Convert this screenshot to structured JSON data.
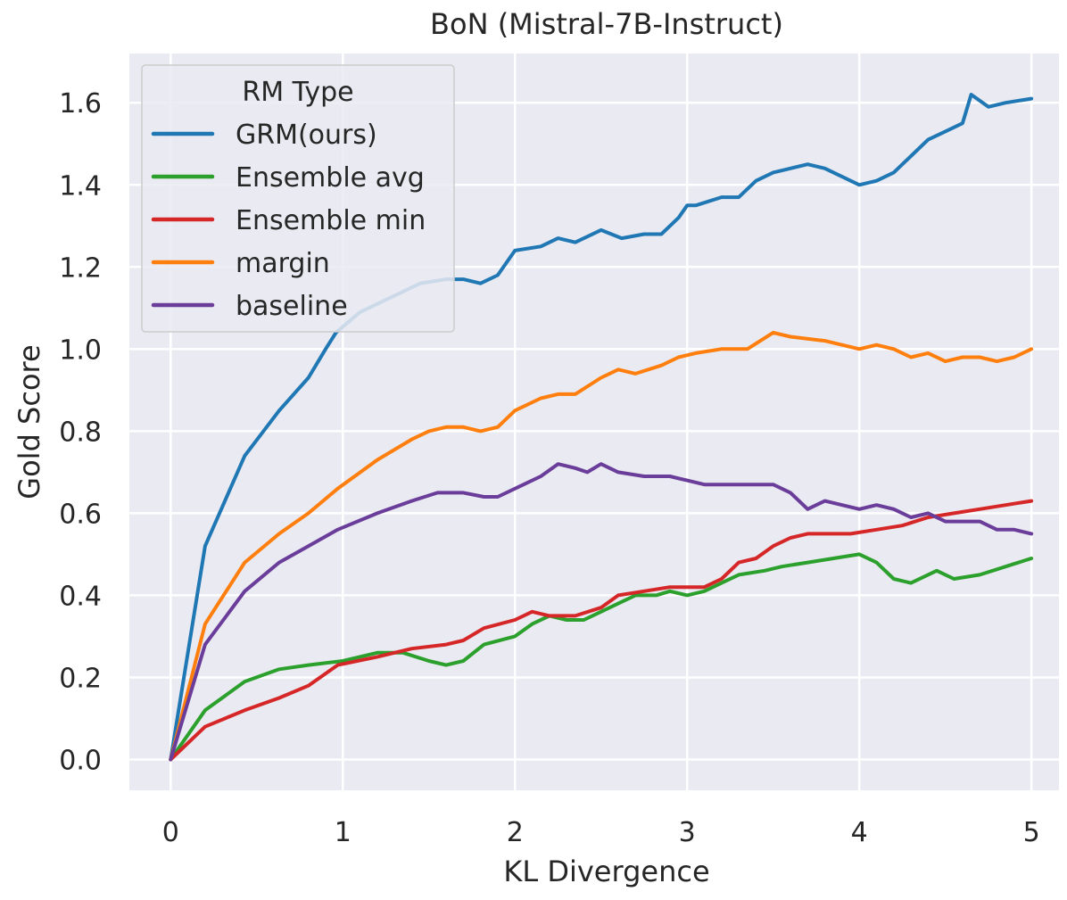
{
  "chart_data": {
    "type": "line",
    "title": "BoN (Mistral-7B-Instruct)",
    "xlabel": "KL Divergence",
    "ylabel": "Gold Score",
    "xlim": [
      -0.24,
      5.16
    ],
    "ylim": [
      -0.075,
      1.72
    ],
    "x_ticks": [
      0,
      1,
      2,
      3,
      4,
      5
    ],
    "x_tick_labels": [
      "0",
      "1",
      "2",
      "3",
      "4",
      "5"
    ],
    "y_ticks": [
      0.0,
      0.2,
      0.4,
      0.6,
      0.8,
      1.0,
      1.2,
      1.4,
      1.6
    ],
    "y_tick_labels": [
      "0.0",
      "0.2",
      "0.4",
      "0.6",
      "0.8",
      "1.0",
      "1.2",
      "1.4",
      "1.6"
    ],
    "grid": true,
    "legend_title": "RM Type",
    "legend_position": "top-left",
    "series": [
      {
        "name": "GRM(ours)",
        "color": "#1f77b4",
        "points": [
          [
            0,
            0
          ],
          [
            0.2,
            0.52
          ],
          [
            0.43,
            0.74
          ],
          [
            0.63,
            0.85
          ],
          [
            0.8,
            0.93
          ],
          [
            0.9,
            1.0
          ],
          [
            0.96,
            1.04
          ],
          [
            1.1,
            1.09
          ],
          [
            1.3,
            1.13
          ],
          [
            1.45,
            1.16
          ],
          [
            1.6,
            1.17
          ],
          [
            1.7,
            1.17
          ],
          [
            1.8,
            1.16
          ],
          [
            1.9,
            1.18
          ],
          [
            2.0,
            1.24
          ],
          [
            2.15,
            1.25
          ],
          [
            2.25,
            1.27
          ],
          [
            2.35,
            1.26
          ],
          [
            2.5,
            1.29
          ],
          [
            2.62,
            1.27
          ],
          [
            2.75,
            1.28
          ],
          [
            2.85,
            1.28
          ],
          [
            2.95,
            1.32
          ],
          [
            3.0,
            1.35
          ],
          [
            3.05,
            1.35
          ],
          [
            3.2,
            1.37
          ],
          [
            3.3,
            1.37
          ],
          [
            3.4,
            1.41
          ],
          [
            3.5,
            1.43
          ],
          [
            3.6,
            1.44
          ],
          [
            3.7,
            1.45
          ],
          [
            3.8,
            1.44
          ],
          [
            3.9,
            1.42
          ],
          [
            4.0,
            1.4
          ],
          [
            4.1,
            1.41
          ],
          [
            4.2,
            1.43
          ],
          [
            4.3,
            1.47
          ],
          [
            4.4,
            1.51
          ],
          [
            4.5,
            1.53
          ],
          [
            4.6,
            1.55
          ],
          [
            4.65,
            1.62
          ],
          [
            4.75,
            1.59
          ],
          [
            4.85,
            1.6
          ],
          [
            5.0,
            1.61
          ]
        ]
      },
      {
        "name": "Ensemble avg",
        "color": "#2ca02c",
        "points": [
          [
            0,
            0
          ],
          [
            0.2,
            0.12
          ],
          [
            0.43,
            0.19
          ],
          [
            0.63,
            0.22
          ],
          [
            0.8,
            0.23
          ],
          [
            1.0,
            0.24
          ],
          [
            1.2,
            0.26
          ],
          [
            1.35,
            0.26
          ],
          [
            1.5,
            0.24
          ],
          [
            1.6,
            0.23
          ],
          [
            1.7,
            0.24
          ],
          [
            1.82,
            0.28
          ],
          [
            2.0,
            0.3
          ],
          [
            2.1,
            0.33
          ],
          [
            2.2,
            0.35
          ],
          [
            2.3,
            0.34
          ],
          [
            2.4,
            0.34
          ],
          [
            2.5,
            0.36
          ],
          [
            2.6,
            0.38
          ],
          [
            2.7,
            0.4
          ],
          [
            2.82,
            0.4
          ],
          [
            2.9,
            0.41
          ],
          [
            3.0,
            0.4
          ],
          [
            3.1,
            0.41
          ],
          [
            3.2,
            0.43
          ],
          [
            3.3,
            0.45
          ],
          [
            3.45,
            0.46
          ],
          [
            3.55,
            0.47
          ],
          [
            3.7,
            0.48
          ],
          [
            3.85,
            0.49
          ],
          [
            4.0,
            0.5
          ],
          [
            4.1,
            0.48
          ],
          [
            4.2,
            0.44
          ],
          [
            4.3,
            0.43
          ],
          [
            4.45,
            0.46
          ],
          [
            4.55,
            0.44
          ],
          [
            4.7,
            0.45
          ],
          [
            4.85,
            0.47
          ],
          [
            5.0,
            0.49
          ]
        ]
      },
      {
        "name": "Ensemble min",
        "color": "#d62728",
        "points": [
          [
            0,
            0
          ],
          [
            0.2,
            0.08
          ],
          [
            0.43,
            0.12
          ],
          [
            0.63,
            0.15
          ],
          [
            0.8,
            0.18
          ],
          [
            0.97,
            0.23
          ],
          [
            1.2,
            0.25
          ],
          [
            1.4,
            0.27
          ],
          [
            1.6,
            0.28
          ],
          [
            1.7,
            0.29
          ],
          [
            1.82,
            0.32
          ],
          [
            2.0,
            0.34
          ],
          [
            2.1,
            0.36
          ],
          [
            2.2,
            0.35
          ],
          [
            2.35,
            0.35
          ],
          [
            2.5,
            0.37
          ],
          [
            2.6,
            0.4
          ],
          [
            2.75,
            0.41
          ],
          [
            2.9,
            0.42
          ],
          [
            3.0,
            0.42
          ],
          [
            3.1,
            0.42
          ],
          [
            3.2,
            0.44
          ],
          [
            3.3,
            0.48
          ],
          [
            3.4,
            0.49
          ],
          [
            3.5,
            0.52
          ],
          [
            3.6,
            0.54
          ],
          [
            3.7,
            0.55
          ],
          [
            3.85,
            0.55
          ],
          [
            3.95,
            0.55
          ],
          [
            4.1,
            0.56
          ],
          [
            4.25,
            0.57
          ],
          [
            4.4,
            0.59
          ],
          [
            4.55,
            0.6
          ],
          [
            4.7,
            0.61
          ],
          [
            4.85,
            0.62
          ],
          [
            5.0,
            0.63
          ]
        ]
      },
      {
        "name": "margin",
        "color": "#ff7f0e",
        "points": [
          [
            0,
            0
          ],
          [
            0.2,
            0.33
          ],
          [
            0.43,
            0.48
          ],
          [
            0.63,
            0.55
          ],
          [
            0.8,
            0.6
          ],
          [
            0.97,
            0.66
          ],
          [
            1.2,
            0.73
          ],
          [
            1.4,
            0.78
          ],
          [
            1.5,
            0.8
          ],
          [
            1.6,
            0.81
          ],
          [
            1.7,
            0.81
          ],
          [
            1.8,
            0.8
          ],
          [
            1.9,
            0.81
          ],
          [
            2.0,
            0.85
          ],
          [
            2.15,
            0.88
          ],
          [
            2.25,
            0.89
          ],
          [
            2.35,
            0.89
          ],
          [
            2.5,
            0.93
          ],
          [
            2.6,
            0.95
          ],
          [
            2.7,
            0.94
          ],
          [
            2.85,
            0.96
          ],
          [
            2.95,
            0.98
          ],
          [
            3.05,
            0.99
          ],
          [
            3.2,
            1.0
          ],
          [
            3.35,
            1.0
          ],
          [
            3.5,
            1.04
          ],
          [
            3.6,
            1.03
          ],
          [
            3.8,
            1.02
          ],
          [
            3.9,
            1.01
          ],
          [
            4.0,
            1.0
          ],
          [
            4.1,
            1.01
          ],
          [
            4.2,
            1.0
          ],
          [
            4.3,
            0.98
          ],
          [
            4.4,
            0.99
          ],
          [
            4.5,
            0.97
          ],
          [
            4.6,
            0.98
          ],
          [
            4.7,
            0.98
          ],
          [
            4.8,
            0.97
          ],
          [
            4.9,
            0.98
          ],
          [
            5.0,
            1.0
          ]
        ]
      },
      {
        "name": "baseline",
        "color": "#6a3d9a",
        "points": [
          [
            0,
            0
          ],
          [
            0.2,
            0.28
          ],
          [
            0.43,
            0.41
          ],
          [
            0.63,
            0.48
          ],
          [
            0.8,
            0.52
          ],
          [
            0.97,
            0.56
          ],
          [
            1.2,
            0.6
          ],
          [
            1.4,
            0.63
          ],
          [
            1.55,
            0.65
          ],
          [
            1.7,
            0.65
          ],
          [
            1.82,
            0.64
          ],
          [
            1.9,
            0.64
          ],
          [
            2.05,
            0.67
          ],
          [
            2.15,
            0.69
          ],
          [
            2.25,
            0.72
          ],
          [
            2.35,
            0.71
          ],
          [
            2.42,
            0.7
          ],
          [
            2.5,
            0.72
          ],
          [
            2.6,
            0.7
          ],
          [
            2.75,
            0.69
          ],
          [
            2.9,
            0.69
          ],
          [
            3.0,
            0.68
          ],
          [
            3.1,
            0.67
          ],
          [
            3.25,
            0.67
          ],
          [
            3.4,
            0.67
          ],
          [
            3.5,
            0.67
          ],
          [
            3.6,
            0.65
          ],
          [
            3.7,
            0.61
          ],
          [
            3.8,
            0.63
          ],
          [
            3.9,
            0.62
          ],
          [
            4.0,
            0.61
          ],
          [
            4.1,
            0.62
          ],
          [
            4.2,
            0.61
          ],
          [
            4.3,
            0.59
          ],
          [
            4.4,
            0.6
          ],
          [
            4.5,
            0.58
          ],
          [
            4.6,
            0.58
          ],
          [
            4.7,
            0.58
          ],
          [
            4.8,
            0.56
          ],
          [
            4.9,
            0.56
          ],
          [
            5.0,
            0.55
          ]
        ]
      }
    ]
  }
}
